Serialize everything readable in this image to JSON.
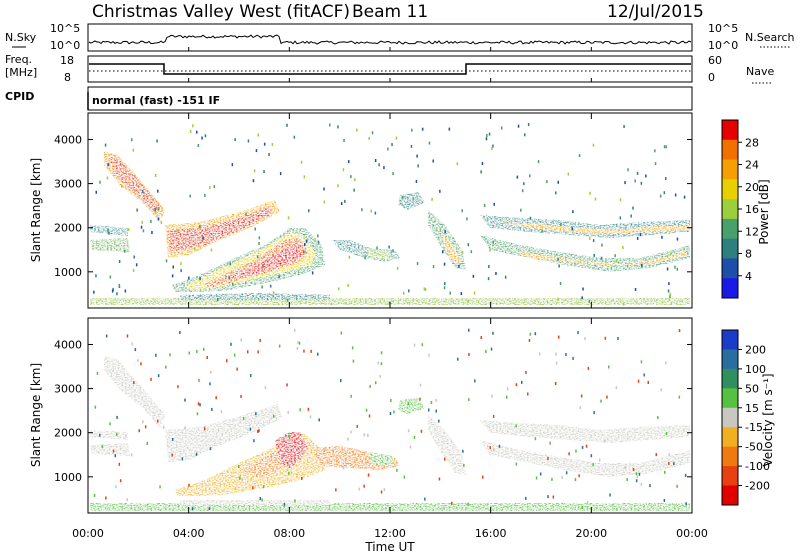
{
  "header": {
    "station": "Christmas Valley West (fitACF)",
    "beam": "Beam 11",
    "date": "12/Jul/2015"
  },
  "top_panels": {
    "nsky_label": "N.Sky",
    "nsky_ticks": [
      "10^5",
      "10^0"
    ],
    "nsearch_label": "N.Search",
    "nsearch_ticks": [
      "10^5",
      "10^0"
    ],
    "freq_label": "Freq.",
    "freq_unit": "[MHz]",
    "freq_ticks": [
      "18",
      "8"
    ],
    "nave_label": "Nave",
    "nave_ticks": [
      "60",
      "0"
    ],
    "cpid_label": "CPID",
    "cpid_value": "normal (fast) -151 IF"
  },
  "chart_data": [
    {
      "type": "heatmap",
      "panel": "power",
      "ylabel": "Slant Range [km]",
      "ylim": [
        180,
        4600
      ],
      "yticks": [
        1000,
        2000,
        3000,
        4000
      ],
      "xlim": [
        "00:00",
        "24:00"
      ],
      "colorbar": {
        "label": "Power [dB]",
        "ticks": [
          "28",
          "24",
          "20",
          "16",
          "12",
          "8",
          "4"
        ],
        "colors": [
          "#e60000",
          "#f27000",
          "#f5a000",
          "#e8d000",
          "#9ccf3c",
          "#4aa06a",
          "#2e7f7f",
          "#1e4fa8",
          "#1a1ae6"
        ]
      }
    },
    {
      "type": "heatmap",
      "panel": "velocity",
      "ylabel": "Slant Range [km]",
      "ylim": [
        180,
        4600
      ],
      "yticks": [
        1000,
        2000,
        3000,
        4000
      ],
      "xlim": [
        "00:00",
        "24:00"
      ],
      "xlabel": "Time UT",
      "xticks": [
        "00:00",
        "04:00",
        "08:00",
        "12:00",
        "16:00",
        "20:00",
        "00:00"
      ],
      "colorbar": {
        "label": "Velocity [m s⁻¹]",
        "ticks": [
          "200",
          "100",
          "50",
          "15",
          "-15",
          "-50",
          "-100",
          "-200"
        ],
        "colors": [
          "#1a3cc8",
          "#2a6ea0",
          "#2f8f5f",
          "#56c040",
          "#c8c8c0",
          "#f0b020",
          "#f07a10",
          "#e84010",
          "#e00000"
        ]
      }
    }
  ]
}
